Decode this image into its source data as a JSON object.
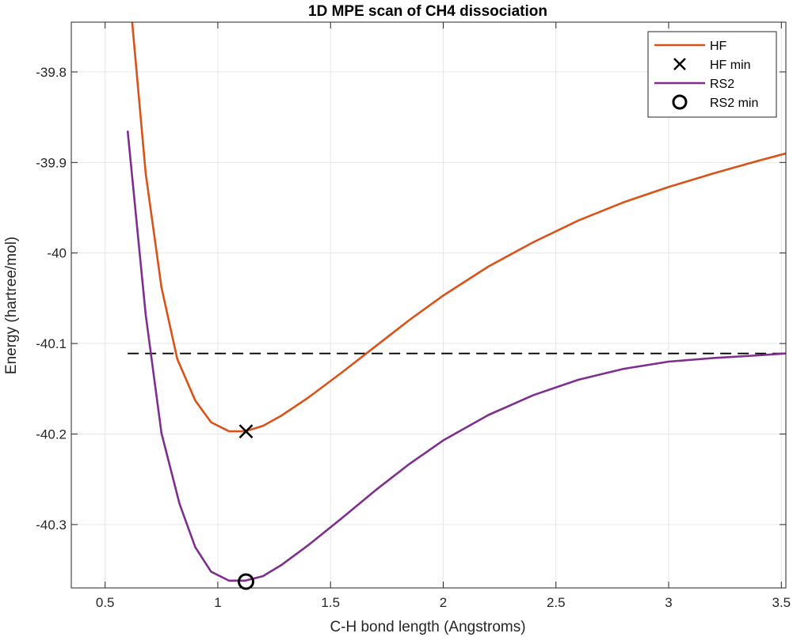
{
  "chart_data": {
    "type": "line",
    "title": "1D MPE scan of CH4 dissociation",
    "xlabel": "C-H bond length (Angstroms)",
    "ylabel": "Energy (hartree/mol)",
    "xlim": [
      0.35,
      3.52
    ],
    "ylim": [
      -40.37,
      -39.745
    ],
    "xticks": [
      0.5,
      1,
      1.5,
      2,
      2.5,
      3,
      3.5
    ],
    "xtick_labels": [
      "0.5",
      "1",
      "1.5",
      "2",
      "2.5",
      "3",
      "3.5"
    ],
    "yticks": [
      -40.3,
      -40.2,
      -40.1,
      -40,
      -39.9,
      -39.8
    ],
    "ytick_labels": [
      "-40.3",
      "-40.2",
      "-40.1",
      "-40",
      "-39.9",
      "-39.8"
    ],
    "grid": true,
    "legend_position": "top-right",
    "series": [
      {
        "name": "HF",
        "style": "line",
        "color": "#D95319",
        "x": [
          0.62,
          0.68,
          0.75,
          0.82,
          0.9,
          0.97,
          1.05,
          1.12,
          1.2,
          1.28,
          1.4,
          1.55,
          1.7,
          1.85,
          2.0,
          2.2,
          2.4,
          2.6,
          2.8,
          3.0,
          3.2,
          3.4,
          3.52
        ],
        "y": [
          -39.745,
          -39.912,
          -40.038,
          -40.117,
          -40.163,
          -40.187,
          -40.197,
          -40.197,
          -40.191,
          -40.18,
          -40.16,
          -40.132,
          -40.103,
          -40.074,
          -40.047,
          -40.015,
          -39.988,
          -39.964,
          -39.944,
          -39.927,
          -39.912,
          -39.898,
          -39.89
        ]
      },
      {
        "name": "HF min",
        "style": "marker-x",
        "color": "#000000",
        "x": [
          1.125
        ],
        "y": [
          -40.197
        ]
      },
      {
        "name": "RS2",
        "style": "line",
        "color": "#7E2F8E",
        "x": [
          0.6,
          0.68,
          0.75,
          0.83,
          0.9,
          0.97,
          1.05,
          1.12,
          1.2,
          1.28,
          1.4,
          1.55,
          1.7,
          1.85,
          2.0,
          2.2,
          2.4,
          2.6,
          2.8,
          3.0,
          3.2,
          3.4,
          3.52
        ],
        "y": [
          -39.865,
          -40.068,
          -40.199,
          -40.277,
          -40.325,
          -40.352,
          -40.362,
          -40.362,
          -40.357,
          -40.345,
          -40.323,
          -40.293,
          -40.262,
          -40.233,
          -40.207,
          -40.179,
          -40.157,
          -40.14,
          -40.128,
          -40.12,
          -40.116,
          -40.113,
          -40.111
        ]
      },
      {
        "name": "RS2 min",
        "style": "marker-o",
        "color": "#000000",
        "x": [
          1.125
        ],
        "y": [
          -40.363
        ]
      }
    ],
    "reference_line": {
      "style": "dashed",
      "color": "#000000",
      "x": [
        0.6,
        3.52
      ],
      "y": [
        -40.111,
        -40.111
      ]
    }
  }
}
